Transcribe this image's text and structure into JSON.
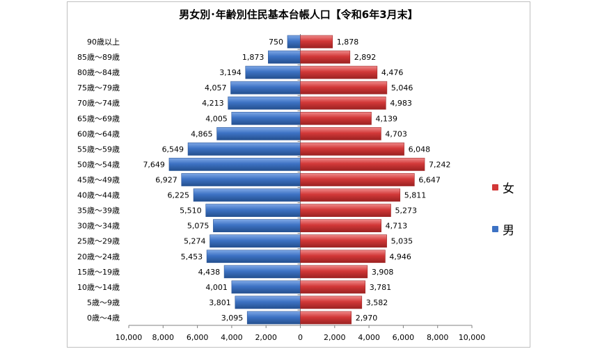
{
  "chart_data": {
    "type": "bar",
    "orientation": "horizontal",
    "title": "男女別･年齢別住民基本台帳人口【令和6年3月末】",
    "categories": [
      "0歳～4歳",
      "5歳～9歳",
      "10歳～14歳",
      "15歳～19歳",
      "20歳～24歳",
      "25歳～29歳",
      "30歳～34歳",
      "35歳～39歳",
      "40歳～44歳",
      "45歳～49歳",
      "50歳～54歳",
      "55歳～59歳",
      "60歳～64歳",
      "65歳～69歳",
      "70歳～74歳",
      "75歳～79歳",
      "80歳～84歳",
      "85歳～89歳",
      "90歳以上"
    ],
    "series": [
      {
        "name": "男",
        "color": "#3d72c4",
        "direction": "left",
        "values": [
          3095,
          3801,
          4001,
          4438,
          5453,
          5274,
          5075,
          5510,
          6225,
          6927,
          7649,
          6549,
          4865,
          4005,
          4213,
          4057,
          3194,
          1873,
          750
        ]
      },
      {
        "name": "女",
        "color": "#d23838",
        "direction": "right",
        "values": [
          2970,
          3582,
          3781,
          3908,
          4946,
          5035,
          4713,
          5273,
          5811,
          6647,
          7242,
          6048,
          4703,
          4139,
          4983,
          5046,
          4476,
          2892,
          1878
        ]
      }
    ],
    "xlim": [
      -10000,
      10000
    ],
    "x_ticks": [
      "10,000",
      "8,000",
      "6,000",
      "4,000",
      "2,000",
      "0",
      "2,000",
      "4,000",
      "6,000",
      "8,000",
      "10,000"
    ],
    "legend_position": "right",
    "legend": [
      {
        "label": "女",
        "color": "#d23838"
      },
      {
        "label": "男",
        "color": "#3d72c4"
      }
    ]
  }
}
